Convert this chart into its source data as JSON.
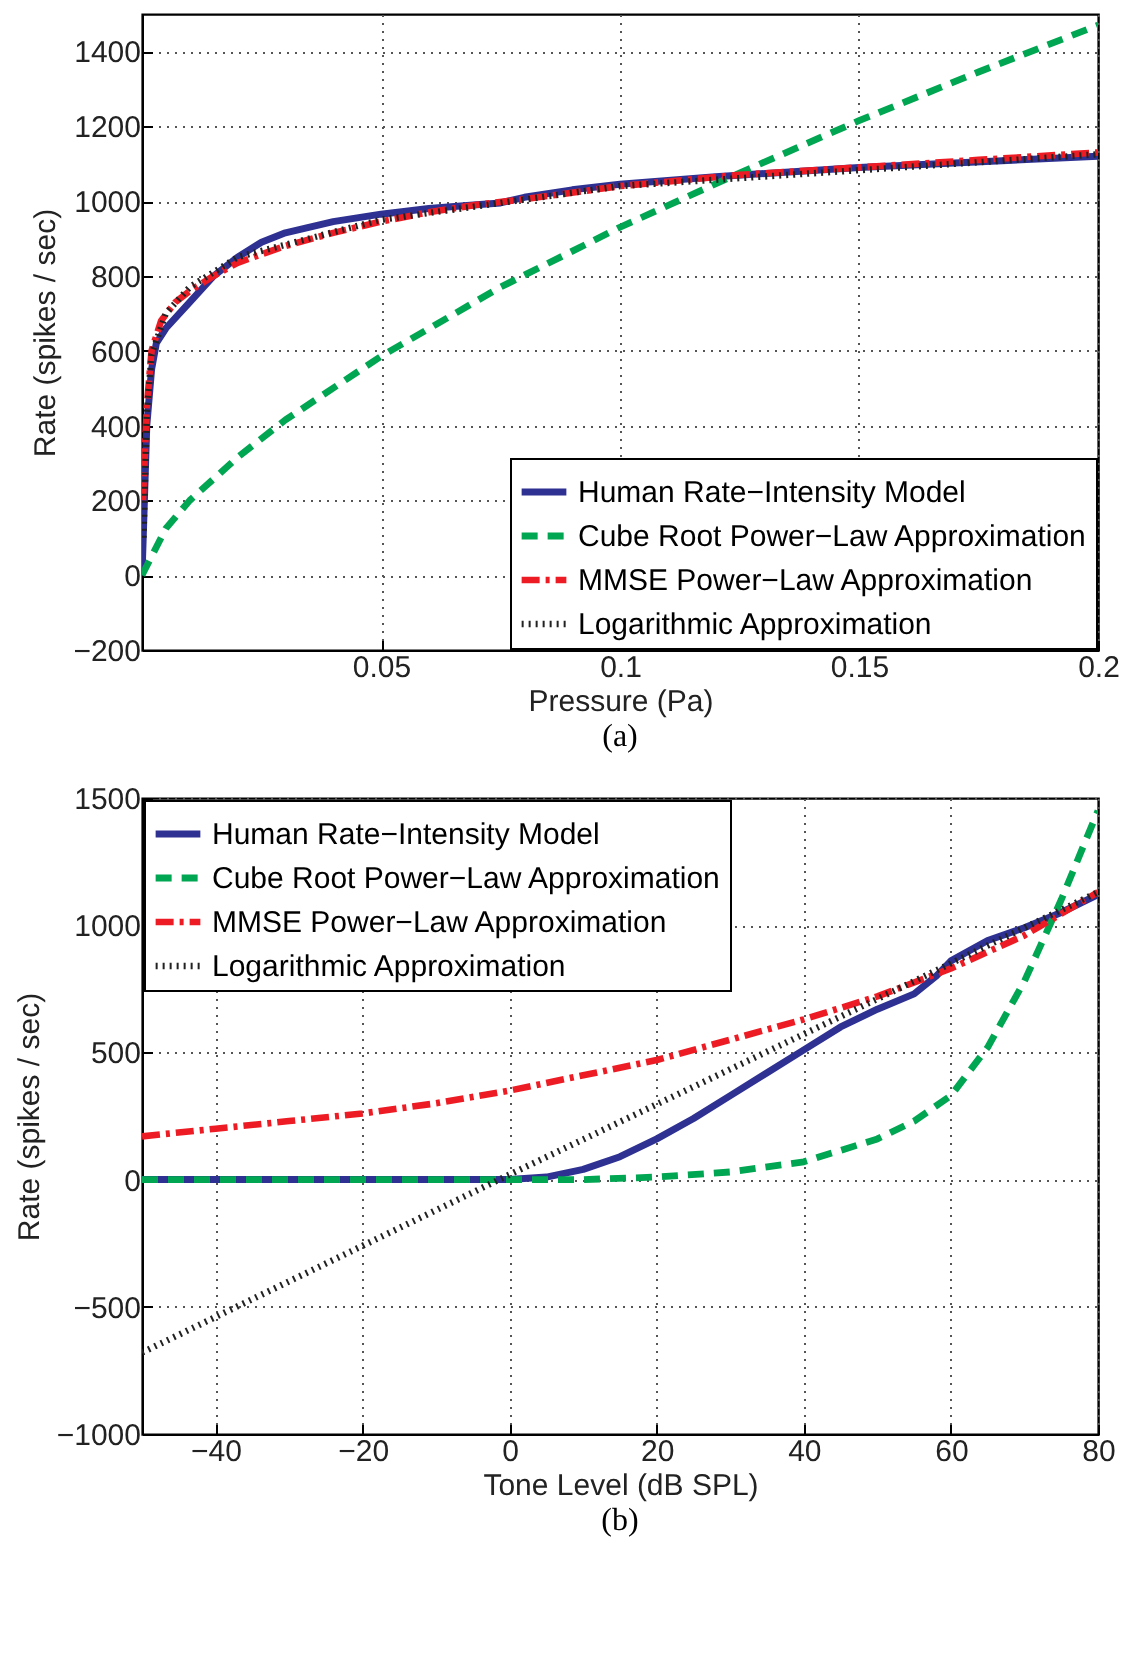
{
  "chart_data": [
    {
      "type": "line",
      "title": "(a)",
      "xlabel": "Pressure (Pa)",
      "ylabel": "Rate (spikes / sec)",
      "xlim": [
        0,
        0.2
      ],
      "ylim": [
        -200,
        1500
      ],
      "xticks": [
        0.05,
        0.1,
        0.15,
        0.2
      ],
      "yticks": [
        -200,
        0,
        200,
        400,
        600,
        800,
        1000,
        1200,
        1400
      ],
      "grid": true,
      "legend": "bottom right",
      "series": [
        {
          "name": "Human Rate−Intensity Model",
          "color": "#2e3192",
          "line_style": "solid",
          "x": [
            0,
            0.001,
            0.002,
            0.003,
            0.005,
            0.01,
            0.015,
            0.02,
            0.025,
            0.03,
            0.04,
            0.05,
            0.06,
            0.07,
            0.075,
            0.08,
            0.09,
            0.1,
            0.12,
            0.15,
            0.2
          ],
          "values": [
            0,
            400,
            550,
            620,
            660,
            730,
            800,
            850,
            890,
            915,
            945,
            965,
            980,
            990,
            995,
            1010,
            1030,
            1045,
            1065,
            1090,
            1120
          ]
        },
        {
          "name": "Cube Root Power−Law Approximation",
          "color": "#00a651",
          "line_style": "dashed",
          "x": [
            0,
            0.005,
            0.01,
            0.02,
            0.03,
            0.05,
            0.075,
            0.1,
            0.125,
            0.15,
            0.175,
            0.2
          ],
          "values": [
            0,
            125,
            200,
            315,
            415,
            585,
            770,
            930,
            1075,
            1215,
            1345,
            1470
          ]
        },
        {
          "name": "MMSE Power−Law Approximation",
          "color": "#ed1c24",
          "line_style": "dashdot",
          "x": [
            0.0002,
            0.001,
            0.002,
            0.004,
            0.007,
            0.01,
            0.015,
            0.02,
            0.03,
            0.04,
            0.05,
            0.06,
            0.07,
            0.08,
            0.1,
            0.125,
            0.15,
            0.175,
            0.2
          ],
          "values": [
            200,
            450,
            600,
            680,
            730,
            760,
            800,
            835,
            880,
            915,
            945,
            970,
            990,
            1005,
            1040,
            1070,
            1090,
            1110,
            1130
          ]
        },
        {
          "name": "Logarithmic Approximation",
          "color": "#222222",
          "line_style": "dotted",
          "x": [
            0.0003,
            0.001,
            0.002,
            0.005,
            0.01,
            0.02,
            0.05,
            0.1,
            0.2
          ],
          "values": [
            100,
            430,
            590,
            700,
            770,
            850,
            950,
            1040,
            1125
          ]
        }
      ]
    },
    {
      "type": "line",
      "title": "(b)",
      "xlabel": "Tone Level (dB SPL)",
      "ylabel": "Rate (spikes / sec)",
      "xlim": [
        -50,
        80
      ],
      "ylim": [
        -1000,
        1500
      ],
      "xticks": [
        -40,
        -20,
        0,
        20,
        40,
        60,
        80
      ],
      "yticks": [
        -1000,
        -500,
        0,
        500,
        1000,
        1500
      ],
      "grid": true,
      "legend": "top left",
      "series": [
        {
          "name": "Human Rate−Intensity Model",
          "color": "#2e3192",
          "line_style": "solid",
          "x": [
            -50,
            -20,
            0,
            5,
            10,
            15,
            20,
            25,
            30,
            35,
            40,
            45,
            50,
            55,
            58,
            60,
            65,
            70,
            75,
            80
          ],
          "values": [
            0,
            0,
            0,
            10,
            40,
            90,
            160,
            240,
            330,
            420,
            510,
            600,
            670,
            730,
            800,
            860,
            940,
            990,
            1050,
            1120
          ]
        },
        {
          "name": "Cube Root Power−Law Approximation",
          "color": "#00a651",
          "line_style": "dashed",
          "x": [
            -50,
            -20,
            0,
            10,
            20,
            30,
            40,
            50,
            55,
            60,
            65,
            70,
            75,
            80
          ],
          "values": [
            0,
            0,
            0,
            0,
            10,
            30,
            70,
            160,
            230,
            330,
            520,
            780,
            1100,
            1450
          ]
        },
        {
          "name": "MMSE Power−Law Approximation",
          "color": "#ed1c24",
          "line_style": "dashdot",
          "x": [
            -50,
            -40,
            -30,
            -20,
            -10,
            0,
            10,
            20,
            30,
            40,
            50,
            60,
            70,
            80
          ],
          "values": [
            170,
            200,
            230,
            260,
            300,
            350,
            410,
            470,
            550,
            630,
            720,
            830,
            960,
            1130
          ]
        },
        {
          "name": "Logarithmic Approximation",
          "color": "#222222",
          "line_style": "dotted",
          "x": [
            -50,
            0,
            50,
            80
          ],
          "values": [
            -680,
            20,
            710,
            1130
          ]
        }
      ]
    }
  ]
}
